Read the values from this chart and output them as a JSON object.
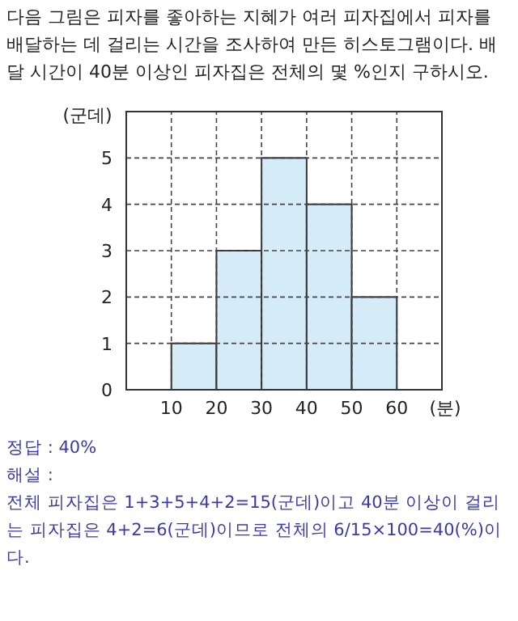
{
  "chart_data": {
    "type": "histogram",
    "title": "다음 그림은 피자를 좋아하는 지혜가 여러 피자집에서 피자를 배달하는 데 걸리는 시간을 조사하여 만든 히스토그램이다. 배달 시간이 40분 이상인 피자집은 전체의 몇 %인지 구하시오.",
    "xlabel": "(분)",
    "ylabel": "(군데)",
    "bins": [
      10,
      20,
      30,
      40,
      50,
      60
    ],
    "values": [
      1,
      3,
      5,
      4,
      2
    ],
    "color": "#d5ecf8",
    "xlim": [
      0,
      70
    ],
    "ylim": [
      0,
      6
    ],
    "xticks": [
      10,
      20,
      30,
      40,
      50,
      60
    ],
    "yticks": [
      0,
      1,
      2,
      3,
      4,
      5
    ],
    "grid": true,
    "annotations": [
      "정답 : 40%",
      "해설 :",
      "전체 피자집은 1+3+5+4+2=15(군데)이고 40분 이상이 걸리는 피자집은 4+2=6(군데)이므로 전체의 6/15×100=40(%)이다."
    ]
  }
}
